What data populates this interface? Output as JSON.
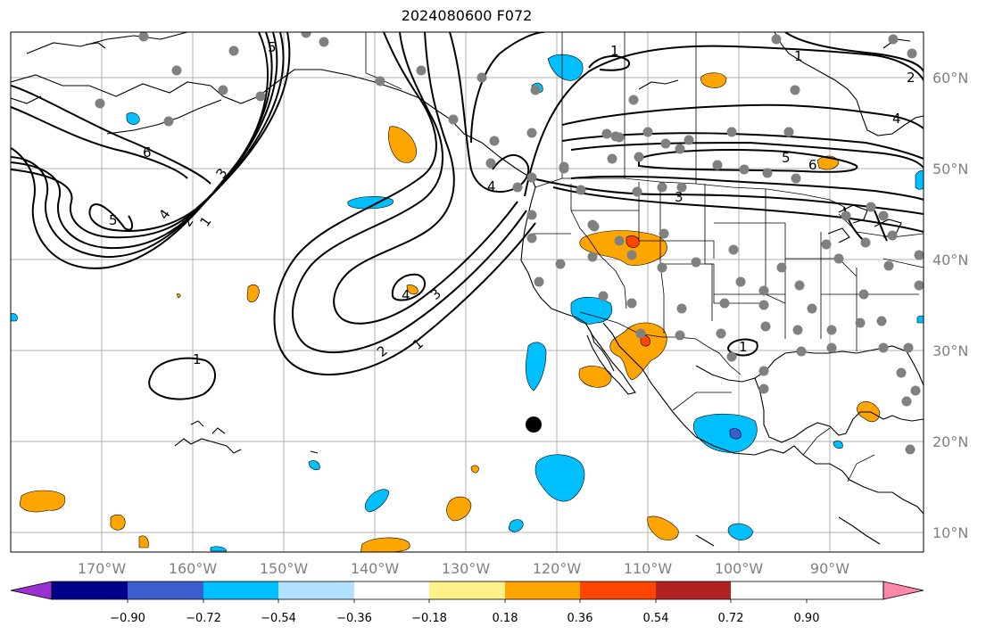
{
  "title": "2024080600 F072",
  "lon_labels": [
    "170°W",
    "160°W",
    "150°W",
    "140°W",
    "130°W",
    "120°W",
    "110°W",
    "100°W",
    "90°W"
  ],
  "lat_labels": [
    "60°N",
    "50°N",
    "40°N",
    "30°N",
    "20°N",
    "10°N"
  ],
  "colorbar": {
    "tick_labels": [
      "−0.90",
      "−0.72",
      "−0.54",
      "−0.36",
      "−0.18",
      "0.18",
      "0.36",
      "0.54",
      "0.72",
      "0.90"
    ],
    "colors": [
      "#9b30d0",
      "#00008b",
      "#3a5fcd",
      "#00bfff",
      "#b0e2ff",
      "#ffffff",
      "#fff08a",
      "#ffa500",
      "#ff4500",
      "#b22222",
      "#ff88aa"
    ]
  },
  "contour_labels": [
    "1",
    "2",
    "3",
    "4",
    "5",
    "6"
  ],
  "colors": {
    "contour": "#000000",
    "grid": "#b0b0b0",
    "coast": "#000000",
    "station": "#808080"
  }
}
